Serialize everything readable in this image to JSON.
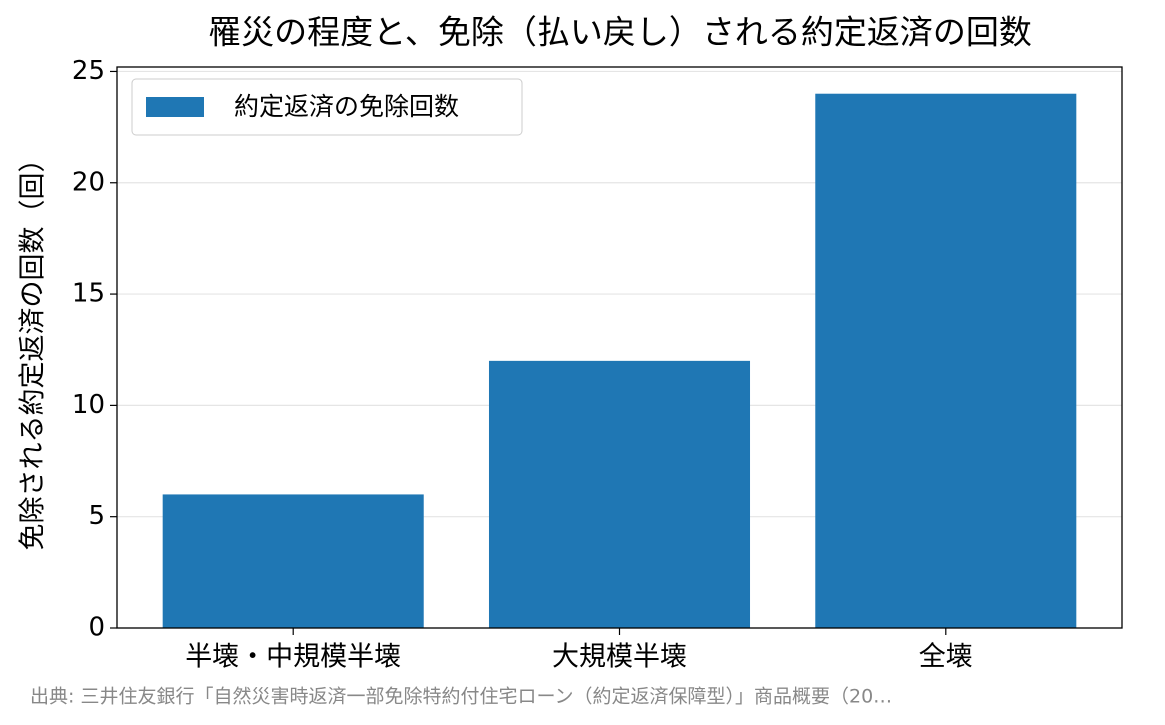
{
  "chart_data": {
    "type": "bar",
    "title": "罹災の程度と、免除（払い戻し）される約定返済の回数",
    "y_label": "免除される約定返済の回数（回）",
    "categories": [
      "半壊・中規模半壊",
      "大規模半壊",
      "全壊"
    ],
    "series": [
      {
        "name": "約定返済の免除回数",
        "color": "#1f77b4",
        "values": [
          6,
          12,
          24
        ]
      }
    ],
    "ylim": [
      0,
      25.2
    ],
    "yticks": [
      0,
      5,
      10,
      15,
      20,
      25
    ],
    "grid": true,
    "legend": "upper left",
    "source": "出典: 三井住友銀行「自然災害時返済一部免除特約付住宅ローン（約定返済保障型）」商品概要（20…"
  }
}
